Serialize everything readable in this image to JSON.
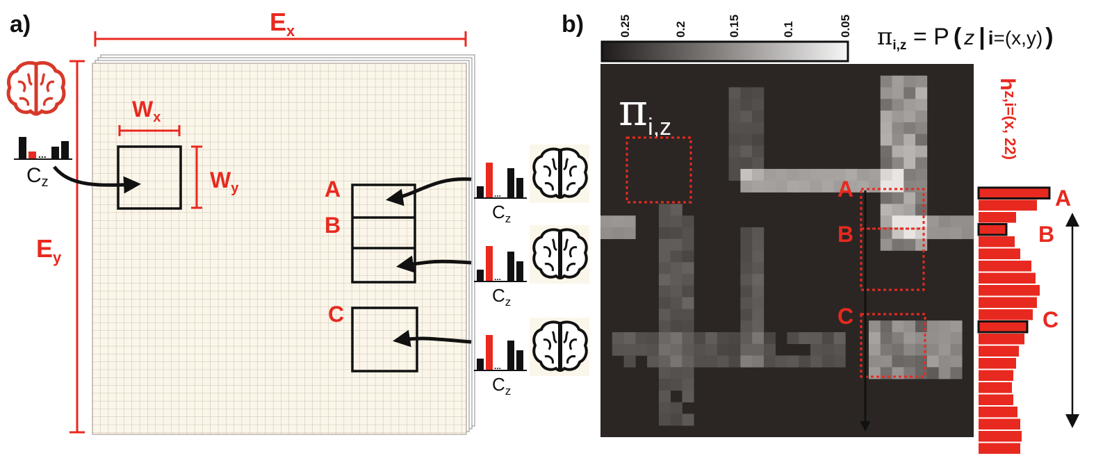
{
  "panel_a": {
    "label": "a)",
    "ex_label": "E",
    "ex_sub": "x",
    "ey_label": "E",
    "ey_sub": "y",
    "wx_label": "W",
    "wx_sub": "x",
    "wy_label": "W",
    "wy_sub": "y",
    "cz_label": "C",
    "cz_sub": "z",
    "windows": [
      {
        "label": "A"
      },
      {
        "label": "B"
      },
      {
        "label": "C"
      }
    ],
    "dots": "..."
  },
  "panel_b": {
    "label": "b)",
    "colorbar_ticks": [
      "0.25",
      "0.2",
      "0.15",
      "0.1",
      "0.05"
    ],
    "formula": {
      "pi": "π",
      "pi_sub": "i,z",
      "eq": " = P",
      "open": "(",
      "z": "z",
      "bar": "|",
      "i": "i",
      "rest": "=(x,y)",
      "close": ")"
    },
    "map_label": "π",
    "map_sub": "i,z",
    "window_labels": [
      "A",
      "B",
      "C"
    ],
    "hist_label": "h",
    "hist_sub": "z,i=(x, 22)",
    "hist_labels": [
      "A",
      "B",
      "C"
    ]
  },
  "colors": {
    "accent": "#e8291f",
    "grid_bg": "#fbf6ea",
    "grid_line": "#cdbfb0",
    "heatmap_dark": "#2b2624"
  }
}
